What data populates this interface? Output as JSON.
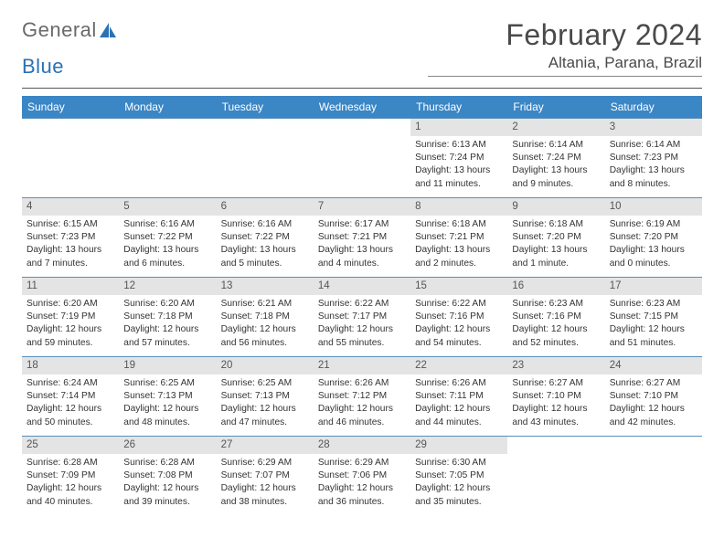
{
  "logo": {
    "text1": "General",
    "text2": "Blue"
  },
  "title": "February 2024",
  "location": "Altania, Parana, Brazil",
  "colors": {
    "header_bg": "#3b86c5",
    "header_text": "#ffffff",
    "daynum_bg": "#e4e4e4",
    "week_border": "#5a8fbb",
    "logo_gray": "#6a6a6a",
    "logo_blue": "#2a72b5"
  },
  "weekdays": [
    "Sunday",
    "Monday",
    "Tuesday",
    "Wednesday",
    "Thursday",
    "Friday",
    "Saturday"
  ],
  "weeks": [
    [
      null,
      null,
      null,
      null,
      {
        "n": "1",
        "sr": "Sunrise: 6:13 AM",
        "ss": "Sunset: 7:24 PM",
        "d1": "Daylight: 13 hours",
        "d2": "and 11 minutes."
      },
      {
        "n": "2",
        "sr": "Sunrise: 6:14 AM",
        "ss": "Sunset: 7:24 PM",
        "d1": "Daylight: 13 hours",
        "d2": "and 9 minutes."
      },
      {
        "n": "3",
        "sr": "Sunrise: 6:14 AM",
        "ss": "Sunset: 7:23 PM",
        "d1": "Daylight: 13 hours",
        "d2": "and 8 minutes."
      }
    ],
    [
      {
        "n": "4",
        "sr": "Sunrise: 6:15 AM",
        "ss": "Sunset: 7:23 PM",
        "d1": "Daylight: 13 hours",
        "d2": "and 7 minutes."
      },
      {
        "n": "5",
        "sr": "Sunrise: 6:16 AM",
        "ss": "Sunset: 7:22 PM",
        "d1": "Daylight: 13 hours",
        "d2": "and 6 minutes."
      },
      {
        "n": "6",
        "sr": "Sunrise: 6:16 AM",
        "ss": "Sunset: 7:22 PM",
        "d1": "Daylight: 13 hours",
        "d2": "and 5 minutes."
      },
      {
        "n": "7",
        "sr": "Sunrise: 6:17 AM",
        "ss": "Sunset: 7:21 PM",
        "d1": "Daylight: 13 hours",
        "d2": "and 4 minutes."
      },
      {
        "n": "8",
        "sr": "Sunrise: 6:18 AM",
        "ss": "Sunset: 7:21 PM",
        "d1": "Daylight: 13 hours",
        "d2": "and 2 minutes."
      },
      {
        "n": "9",
        "sr": "Sunrise: 6:18 AM",
        "ss": "Sunset: 7:20 PM",
        "d1": "Daylight: 13 hours",
        "d2": "and 1 minute."
      },
      {
        "n": "10",
        "sr": "Sunrise: 6:19 AM",
        "ss": "Sunset: 7:20 PM",
        "d1": "Daylight: 13 hours",
        "d2": "and 0 minutes."
      }
    ],
    [
      {
        "n": "11",
        "sr": "Sunrise: 6:20 AM",
        "ss": "Sunset: 7:19 PM",
        "d1": "Daylight: 12 hours",
        "d2": "and 59 minutes."
      },
      {
        "n": "12",
        "sr": "Sunrise: 6:20 AM",
        "ss": "Sunset: 7:18 PM",
        "d1": "Daylight: 12 hours",
        "d2": "and 57 minutes."
      },
      {
        "n": "13",
        "sr": "Sunrise: 6:21 AM",
        "ss": "Sunset: 7:18 PM",
        "d1": "Daylight: 12 hours",
        "d2": "and 56 minutes."
      },
      {
        "n": "14",
        "sr": "Sunrise: 6:22 AM",
        "ss": "Sunset: 7:17 PM",
        "d1": "Daylight: 12 hours",
        "d2": "and 55 minutes."
      },
      {
        "n": "15",
        "sr": "Sunrise: 6:22 AM",
        "ss": "Sunset: 7:16 PM",
        "d1": "Daylight: 12 hours",
        "d2": "and 54 minutes."
      },
      {
        "n": "16",
        "sr": "Sunrise: 6:23 AM",
        "ss": "Sunset: 7:16 PM",
        "d1": "Daylight: 12 hours",
        "d2": "and 52 minutes."
      },
      {
        "n": "17",
        "sr": "Sunrise: 6:23 AM",
        "ss": "Sunset: 7:15 PM",
        "d1": "Daylight: 12 hours",
        "d2": "and 51 minutes."
      }
    ],
    [
      {
        "n": "18",
        "sr": "Sunrise: 6:24 AM",
        "ss": "Sunset: 7:14 PM",
        "d1": "Daylight: 12 hours",
        "d2": "and 50 minutes."
      },
      {
        "n": "19",
        "sr": "Sunrise: 6:25 AM",
        "ss": "Sunset: 7:13 PM",
        "d1": "Daylight: 12 hours",
        "d2": "and 48 minutes."
      },
      {
        "n": "20",
        "sr": "Sunrise: 6:25 AM",
        "ss": "Sunset: 7:13 PM",
        "d1": "Daylight: 12 hours",
        "d2": "and 47 minutes."
      },
      {
        "n": "21",
        "sr": "Sunrise: 6:26 AM",
        "ss": "Sunset: 7:12 PM",
        "d1": "Daylight: 12 hours",
        "d2": "and 46 minutes."
      },
      {
        "n": "22",
        "sr": "Sunrise: 6:26 AM",
        "ss": "Sunset: 7:11 PM",
        "d1": "Daylight: 12 hours",
        "d2": "and 44 minutes."
      },
      {
        "n": "23",
        "sr": "Sunrise: 6:27 AM",
        "ss": "Sunset: 7:10 PM",
        "d1": "Daylight: 12 hours",
        "d2": "and 43 minutes."
      },
      {
        "n": "24",
        "sr": "Sunrise: 6:27 AM",
        "ss": "Sunset: 7:10 PM",
        "d1": "Daylight: 12 hours",
        "d2": "and 42 minutes."
      }
    ],
    [
      {
        "n": "25",
        "sr": "Sunrise: 6:28 AM",
        "ss": "Sunset: 7:09 PM",
        "d1": "Daylight: 12 hours",
        "d2": "and 40 minutes."
      },
      {
        "n": "26",
        "sr": "Sunrise: 6:28 AM",
        "ss": "Sunset: 7:08 PM",
        "d1": "Daylight: 12 hours",
        "d2": "and 39 minutes."
      },
      {
        "n": "27",
        "sr": "Sunrise: 6:29 AM",
        "ss": "Sunset: 7:07 PM",
        "d1": "Daylight: 12 hours",
        "d2": "and 38 minutes."
      },
      {
        "n": "28",
        "sr": "Sunrise: 6:29 AM",
        "ss": "Sunset: 7:06 PM",
        "d1": "Daylight: 12 hours",
        "d2": "and 36 minutes."
      },
      {
        "n": "29",
        "sr": "Sunrise: 6:30 AM",
        "ss": "Sunset: 7:05 PM",
        "d1": "Daylight: 12 hours",
        "d2": "and 35 minutes."
      },
      null,
      null
    ]
  ]
}
